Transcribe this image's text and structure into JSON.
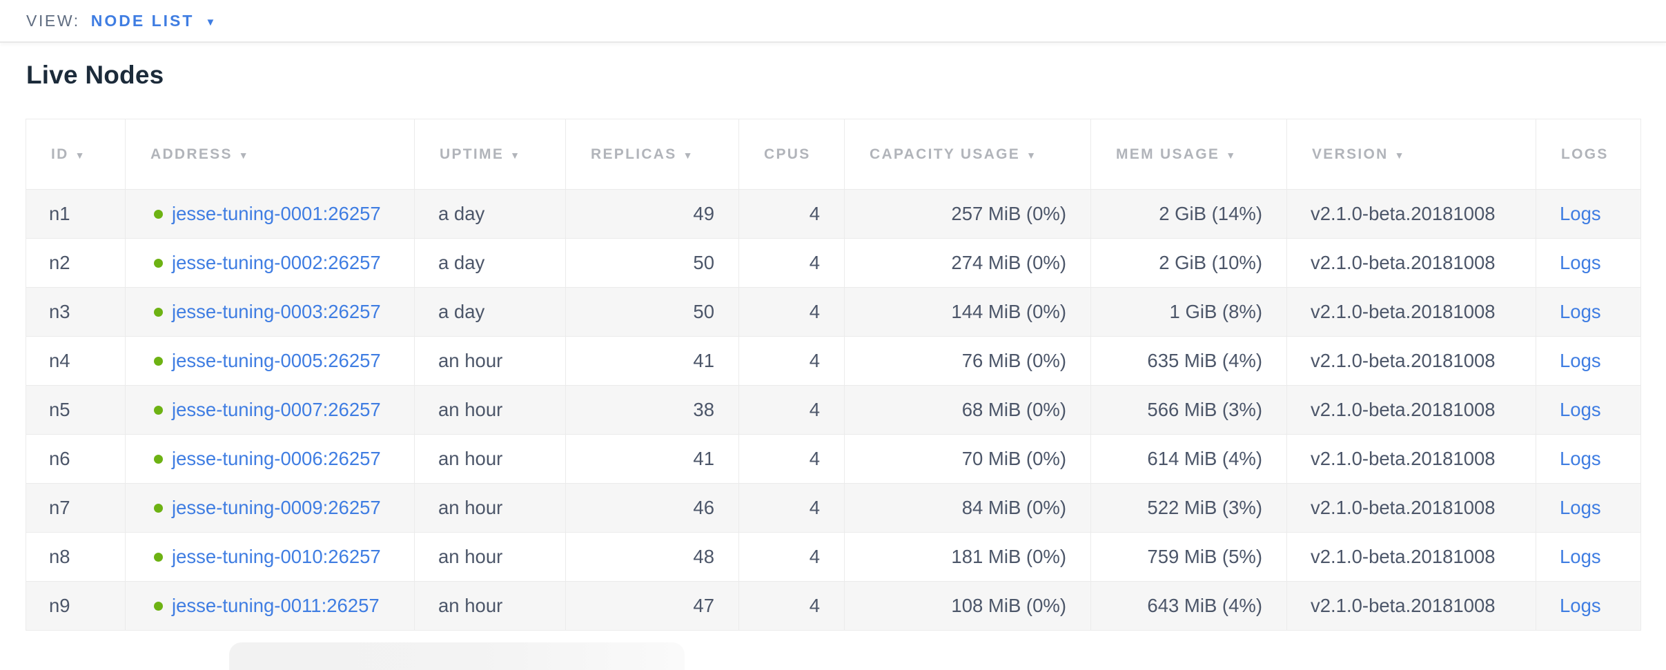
{
  "view_bar": {
    "label": "VIEW:",
    "selected": "NODE LIST",
    "dropdown_icon": "▼"
  },
  "page": {
    "title": "Live Nodes"
  },
  "colors": {
    "link_blue": "#3f7de2",
    "live_status_green": "#6db213",
    "header_text_gray": "#b1b4ba",
    "cell_text": "#4c5669",
    "row_stripe": "#f6f6f6"
  },
  "table": {
    "columns": [
      {
        "key": "id",
        "label": "ID",
        "sort_icon": "▼",
        "sortable": true,
        "align": "left"
      },
      {
        "key": "address",
        "label": "ADDRESS",
        "sort_icon": "▼",
        "sortable": true,
        "align": "left"
      },
      {
        "key": "uptime",
        "label": "UPTIME",
        "sort_icon": "▼",
        "sortable": true,
        "align": "left"
      },
      {
        "key": "replicas",
        "label": "REPLICAS",
        "sort_icon": "▼",
        "sortable": true,
        "align": "right"
      },
      {
        "key": "cpus",
        "label": "CPUS",
        "sort_icon": "",
        "sortable": false,
        "align": "right"
      },
      {
        "key": "capacity",
        "label": "CAPACITY USAGE",
        "sort_icon": "▼",
        "sortable": true,
        "align": "right"
      },
      {
        "key": "mem",
        "label": "MEM USAGE",
        "sort_icon": "▼",
        "sortable": true,
        "align": "right"
      },
      {
        "key": "version",
        "label": "VERSION",
        "sort_icon": "▼",
        "sortable": true,
        "align": "left"
      },
      {
        "key": "logs",
        "label": "LOGS",
        "sort_icon": "",
        "sortable": false,
        "align": "left"
      }
    ],
    "rows": [
      {
        "id": "n1",
        "status": "live",
        "address": "jesse-tuning-0001:26257",
        "uptime": "a day",
        "replicas": "49",
        "cpus": "4",
        "capacity": "257 MiB (0%)",
        "mem": "2 GiB (14%)",
        "version": "v2.1.0-beta.20181008",
        "logs": "Logs"
      },
      {
        "id": "n2",
        "status": "live",
        "address": "jesse-tuning-0002:26257",
        "uptime": "a day",
        "replicas": "50",
        "cpus": "4",
        "capacity": "274 MiB (0%)",
        "mem": "2 GiB (10%)",
        "version": "v2.1.0-beta.20181008",
        "logs": "Logs"
      },
      {
        "id": "n3",
        "status": "live",
        "address": "jesse-tuning-0003:26257",
        "uptime": "a day",
        "replicas": "50",
        "cpus": "4",
        "capacity": "144 MiB (0%)",
        "mem": "1 GiB (8%)",
        "version": "v2.1.0-beta.20181008",
        "logs": "Logs"
      },
      {
        "id": "n4",
        "status": "live",
        "address": "jesse-tuning-0005:26257",
        "uptime": "an hour",
        "replicas": "41",
        "cpus": "4",
        "capacity": "76 MiB (0%)",
        "mem": "635 MiB (4%)",
        "version": "v2.1.0-beta.20181008",
        "logs": "Logs"
      },
      {
        "id": "n5",
        "status": "live",
        "address": "jesse-tuning-0007:26257",
        "uptime": "an hour",
        "replicas": "38",
        "cpus": "4",
        "capacity": "68 MiB (0%)",
        "mem": "566 MiB (3%)",
        "version": "v2.1.0-beta.20181008",
        "logs": "Logs"
      },
      {
        "id": "n6",
        "status": "live",
        "address": "jesse-tuning-0006:26257",
        "uptime": "an hour",
        "replicas": "41",
        "cpus": "4",
        "capacity": "70 MiB (0%)",
        "mem": "614 MiB (4%)",
        "version": "v2.1.0-beta.20181008",
        "logs": "Logs"
      },
      {
        "id": "n7",
        "status": "live",
        "address": "jesse-tuning-0009:26257",
        "uptime": "an hour",
        "replicas": "46",
        "cpus": "4",
        "capacity": "84 MiB (0%)",
        "mem": "522 MiB (3%)",
        "version": "v2.1.0-beta.20181008",
        "logs": "Logs"
      },
      {
        "id": "n8",
        "status": "live",
        "address": "jesse-tuning-0010:26257",
        "uptime": "an hour",
        "replicas": "48",
        "cpus": "4",
        "capacity": "181 MiB (0%)",
        "mem": "759 MiB (5%)",
        "version": "v2.1.0-beta.20181008",
        "logs": "Logs"
      },
      {
        "id": "n9",
        "status": "live",
        "address": "jesse-tuning-0011:26257",
        "uptime": "an hour",
        "replicas": "47",
        "cpus": "4",
        "capacity": "108 MiB (0%)",
        "mem": "643 MiB (4%)",
        "version": "v2.1.0-beta.20181008",
        "logs": "Logs"
      }
    ]
  }
}
